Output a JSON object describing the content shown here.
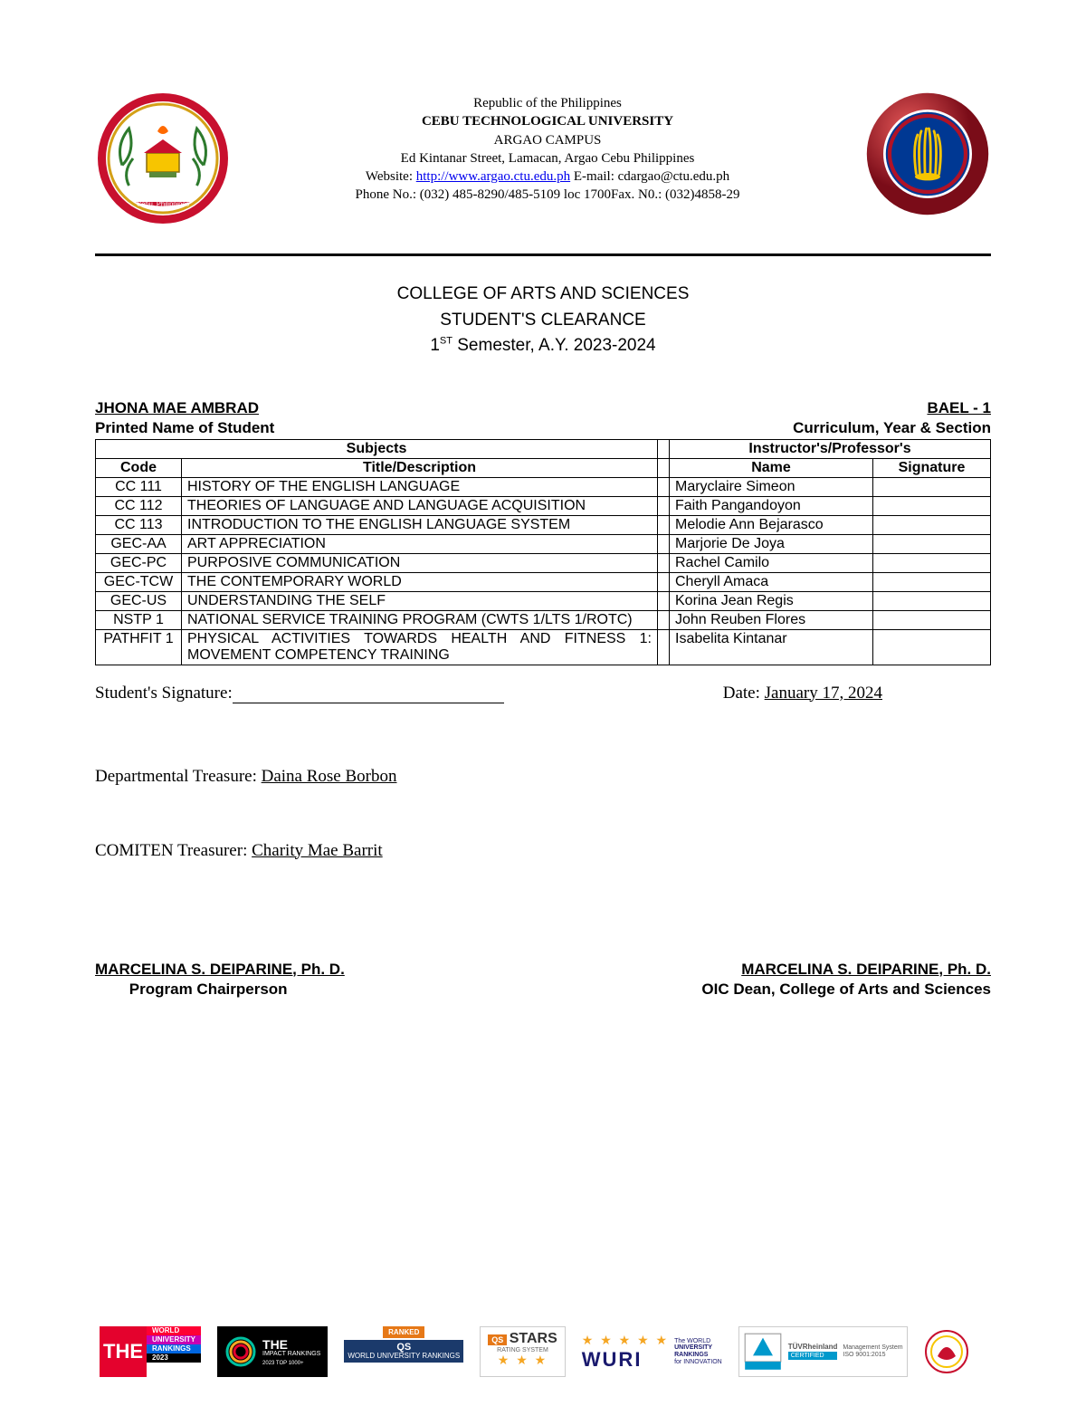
{
  "header": {
    "republic": "Republic of the Philippines",
    "university": "CEBU TECHNOLOGICAL UNIVERSITY",
    "campus": "ARGAO CAMPUS",
    "address": "Ed Kintanar Street, Lamacan, Argao Cebu Philippines",
    "website_label": "Website: ",
    "website_url": "http://www.argao.ctu.edu.ph",
    "email_label": " E-mail: cdargao@ctu.edu.ph",
    "phone": "Phone No.: (032) 485-8290/485-5109 loc 1700Fax. N0.: (032)4858-29"
  },
  "title": {
    "line1": "COLLEGE OF ARTS AND SCIENCES",
    "line2": "STUDENT'S  CLEARANCE",
    "line3_pre": "1",
    "line3_sup": "ST",
    "line3_post": "  Semester, A.Y. 2023-2024"
  },
  "student": {
    "name": " JHONA MAE AMBRAD",
    "curriculum": "BAEL - 1",
    "name_label": "Printed Name of Student",
    "curr_label": "Curriculum, Year & Section"
  },
  "table": {
    "subjects_header": "Subjects",
    "instructors_header": "Instructor's/Professor's",
    "code_header": "Code",
    "title_header": "Title/Description",
    "name_header": "Name",
    "sig_header": "Signature",
    "rows": [
      {
        "code": "CC 111",
        "title": "HISTORY OF THE ENGLISH LANGUAGE",
        "name": "Maryclaire Simeon"
      },
      {
        "code": "CC 112",
        "title": "THEORIES OF LANGUAGE AND LANGUAGE ACQUISITION",
        "name": "Faith Pangandoyon"
      },
      {
        "code": "CC 113",
        "title": "INTRODUCTION TO THE ENGLISH LANGUAGE SYSTEM",
        "name": "Melodie Ann Bejarasco"
      },
      {
        "code": "GEC-AA",
        "title": "ART APPRECIATION",
        "name": "Marjorie De Joya"
      },
      {
        "code": "GEC-PC",
        "title": "PURPOSIVE COMMUNICATION",
        "name": "Rachel Camilo"
      },
      {
        "code": "GEC-TCW",
        "title": "THE CONTEMPORARY WORLD",
        "name": "Cheryll Amaca"
      },
      {
        "code": "GEC-US",
        "title": "UNDERSTANDING THE SELF",
        "name": "Korina Jean Regis"
      },
      {
        "code": "NSTP 1",
        "title": "NATIONAL SERVICE TRAINING PROGRAM (CWTS 1/LTS 1/ROTC)",
        "name": "John Reuben Flores"
      },
      {
        "code": "PATHFIT 1",
        "title": "PHYSICAL ACTIVITIES TOWARDS HEALTH AND FITNESS 1: MOVEMENT COMPETENCY TRAINING",
        "name": "Isabelita Kintanar"
      }
    ]
  },
  "signatures": {
    "student_sig_label": "Student's Signature: ",
    "date_label": "Date: ",
    "date_value": "January 17, 2024 ",
    "dept_label": "Departmental Treasure: ",
    "dept_name": "Daina Rose Borbon",
    "comiten_label": "COMITEN Treasurer: ",
    "comiten_name": "Charity Mae Barrit"
  },
  "approvers": {
    "left_name": "MARCELINA S. DEIPARINE, Ph. D.",
    "right_name": "MARCELINA S. DEIPARINE, Ph. D.",
    "left_role_pre": "        Program Chairperson",
    "right_role": "OIC Dean, College of Arts and Sciences"
  },
  "footer": {
    "the": "THE",
    "world": "WORLD",
    "univ": "UNIVERSITY",
    "rank": "RANKINGS",
    "year": "2023",
    "impact": "IMPACT RANKINGS",
    "top1000": "2023 TOP 1000+",
    "ranked": "RANKED",
    "qs_world": "WORLD UNIVERSITY RANKINGS",
    "qs": "QS",
    "stars_label": "STARS",
    "rating": "RATING SYSTEM",
    "wuri": "WURI",
    "wuri_sub1": "The WORLD",
    "wuri_sub2": "UNIVERSITY",
    "wuri_sub3": "RANKINGS",
    "wuri_sub4": "for INNOVATION",
    "tuv": "TÜVRheinland",
    "cert": "CERTIFIED",
    "mgmt": "Management System",
    "iso": "ISO 9001:2015"
  },
  "colors": {
    "seal_red": "#c8102e",
    "seal_gold": "#d4a017",
    "seal_green": "#2d7a2d",
    "asean_red": "#b11226",
    "asean_blue": "#003893",
    "asean_yellow": "#f7c500",
    "the_red": "#e4022d",
    "qs_orange": "#e67817",
    "qs_blue": "#1b3a6b",
    "star_gold": "#f5a623",
    "wuri_blue": "#1a1a6e",
    "tuv_blue": "#0099cc"
  }
}
